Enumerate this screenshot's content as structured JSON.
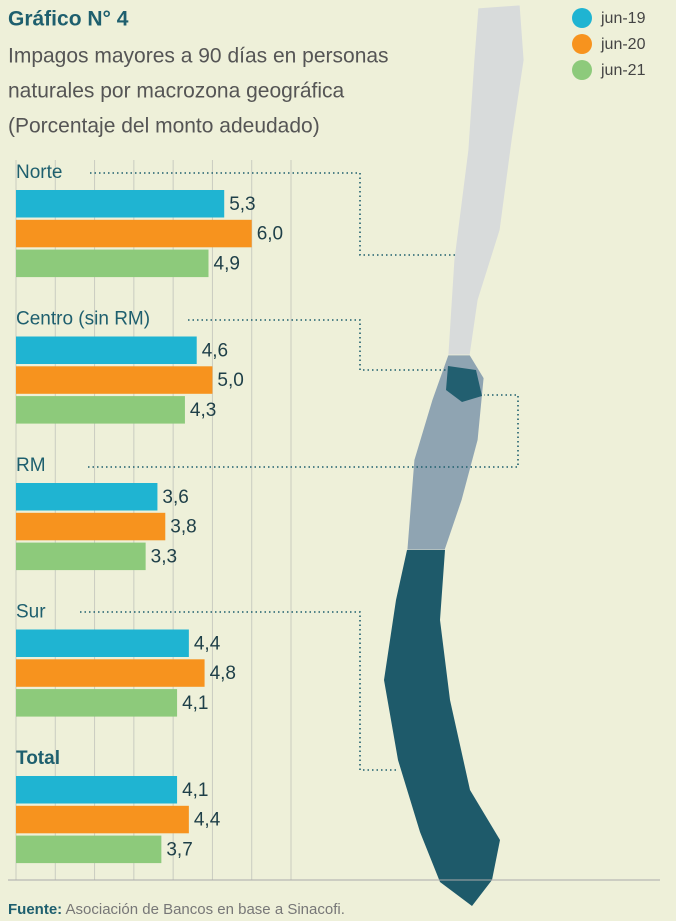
{
  "chart_data": {
    "type": "bar",
    "orientation": "horizontal",
    "title": "Gráfico N° 4",
    "subtitle": [
      "Impagos mayores a 90 días en personas",
      "naturales por macrozona geográfica",
      "(Porcentaje del monto adeudado)"
    ],
    "categories": [
      "Norte",
      "Centro (sin RM)",
      "RM",
      "Sur",
      "Total"
    ],
    "series": [
      {
        "name": "jun-19",
        "color": "#1fb4d2",
        "values": [
          5.3,
          4.6,
          3.6,
          4.4,
          4.1
        ],
        "value_labels": [
          "5,3",
          "4,6",
          "3,6",
          "4,4",
          "4,1"
        ]
      },
      {
        "name": "jun-20",
        "color": "#f7931e",
        "values": [
          6.0,
          5.0,
          3.8,
          4.8,
          4.4
        ],
        "value_labels": [
          "6,0",
          "5,0",
          "3,8",
          "4,8",
          "4,4"
        ]
      },
      {
        "name": "jun-21",
        "color": "#8dca7b",
        "values": [
          4.9,
          4.3,
          3.3,
          4.1,
          3.7
        ],
        "value_labels": [
          "4,9",
          "4,3",
          "3,3",
          "4,1",
          "3,7"
        ]
      }
    ],
    "xlim": [
      0,
      7
    ],
    "xticks": [
      0,
      1,
      2,
      3,
      4,
      5,
      6,
      7
    ],
    "grid": true,
    "legend": "upper right",
    "source_label": "Fuente:",
    "source": "Asociación de Bancos en base a Sinacofi."
  }
}
